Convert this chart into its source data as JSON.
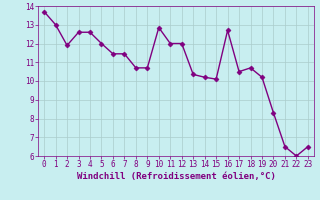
{
  "x": [
    0,
    1,
    2,
    3,
    4,
    5,
    6,
    7,
    8,
    9,
    10,
    11,
    12,
    13,
    14,
    15,
    16,
    17,
    18,
    19,
    20,
    21,
    22,
    23
  ],
  "y": [
    13.7,
    13.0,
    11.9,
    12.6,
    12.6,
    12.0,
    11.45,
    11.45,
    10.7,
    10.7,
    12.85,
    12.0,
    12.0,
    10.35,
    10.2,
    10.1,
    12.7,
    10.5,
    10.7,
    10.2,
    8.3,
    6.5,
    6.0,
    6.5
  ],
  "line_color": "#800080",
  "marker": "D",
  "markersize": 2.5,
  "linewidth": 1.0,
  "xlabel": "Windchill (Refroidissement éolien,°C)",
  "xlabel_fontsize": 6.5,
  "bg_color": "#c8eef0",
  "grid_color": "#aacccc",
  "ylim": [
    6,
    14
  ],
  "xlim": [
    -0.5,
    23.5
  ],
  "yticks": [
    6,
    7,
    8,
    9,
    10,
    11,
    12,
    13,
    14
  ],
  "xticks": [
    0,
    1,
    2,
    3,
    4,
    5,
    6,
    7,
    8,
    9,
    10,
    11,
    12,
    13,
    14,
    15,
    16,
    17,
    18,
    19,
    20,
    21,
    22,
    23
  ],
  "tick_fontsize": 5.5,
  "tick_color": "#800080",
  "ylabel_color": "#800080"
}
